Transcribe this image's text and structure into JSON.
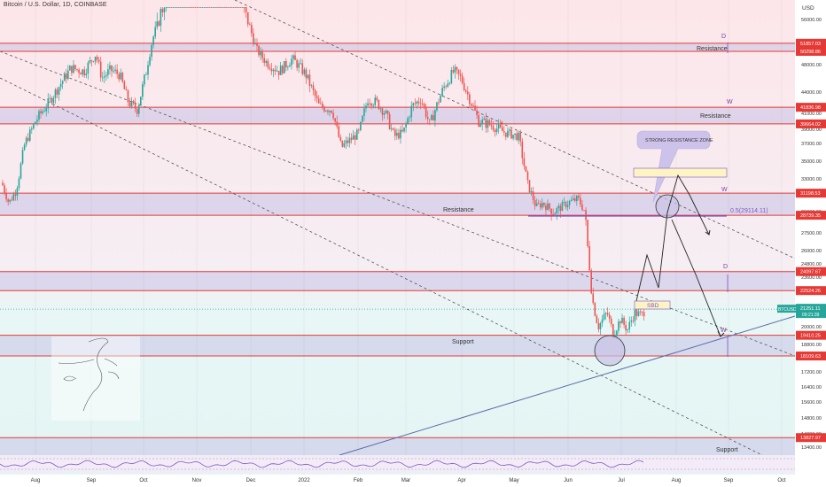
{
  "header": {
    "title": "Bitcoin / U.S. Dollar, 1D, COINBASE"
  },
  "chart_data": {
    "type": "candlestick",
    "symbol": "BTCUSD",
    "price_unit": "USD",
    "last_price": "21251.11",
    "countdown": "09:21:39",
    "y_ticks": [
      "56000.00",
      "52000.00",
      "48000.00",
      "44000.00",
      "41000.00",
      "39000.00",
      "37000.00",
      "35000.00",
      "33000.00",
      "31000.00",
      "29000.00",
      "27500.00",
      "26000.00",
      "24800.00",
      "23600.00",
      "22400.00",
      "21200.00",
      "20000.00",
      "18800.00",
      "17200.00",
      "16400.00",
      "15600.00",
      "14800.00",
      "14000.00",
      "13400.00"
    ],
    "x_ticks": [
      "Aug",
      "Sep",
      "Oct",
      "Nov",
      "Dec",
      "2022",
      "Feb",
      "Mar",
      "Apr",
      "May",
      "Jun",
      "Jul",
      "Aug",
      "Sep",
      "Oct"
    ],
    "price_levels": [
      {
        "value": "51857.03"
      },
      {
        "value": "50298.86"
      },
      {
        "value": "41836.98"
      },
      {
        "value": "39664.02"
      },
      {
        "value": "31198.53"
      },
      {
        "value": "28739.35"
      },
      {
        "value": "24097.67"
      },
      {
        "value": "22524.26"
      },
      {
        "value": "19410.25"
      },
      {
        "value": "18109.63"
      },
      {
        "value": "13827.97"
      }
    ],
    "zones": [
      {
        "label": "Resistance",
        "top": 51857.03,
        "bottom": 50298.86
      },
      {
        "label": "Resistance",
        "top": 41836.98,
        "bottom": 39664.02
      },
      {
        "label": "Resistance",
        "top": 31198.53,
        "bottom": 28739.35
      },
      {
        "label": "",
        "top": 24097.67,
        "bottom": 22524.26
      },
      {
        "label": "Support",
        "top": 19410.25,
        "bottom": 18109.63
      },
      {
        "label": "Support",
        "top": 13827.97,
        "bottom": 12300
      }
    ],
    "annotations": {
      "strong_zone": "STRONG RESISTANCE ZONE",
      "fib": "0.5(29114.11)",
      "sbd": "SBD",
      "d1": "D",
      "w1": "W",
      "w2": "W",
      "d2": "D",
      "w3": "W"
    },
    "colors": {
      "bull": "#26a69a",
      "bear": "#ef5350",
      "zone": "#c9c2e6",
      "level": "#e53935",
      "trend": "#6d6d8d",
      "upper_bg": "#fde7ec",
      "lower_bg": "#e6f6f6"
    }
  }
}
